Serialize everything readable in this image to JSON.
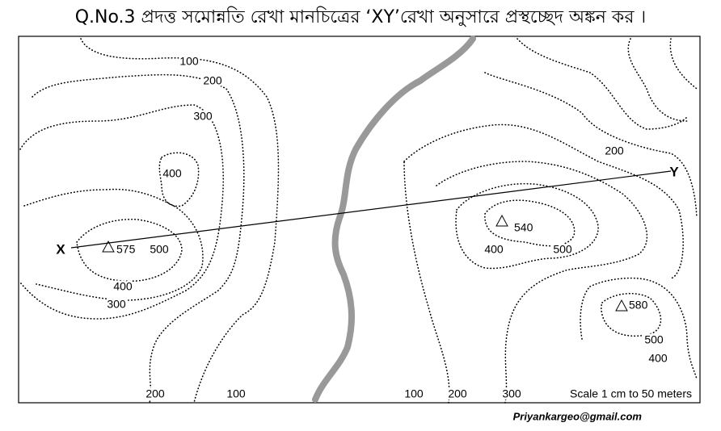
{
  "title": "Q.No.3 প্রদত্ত সমোন্নতি রেখা মানচিত্রের ‘XY’রেখা অনুসারে প্রস্থচ্ছেদ অঙ্কন কর ।",
  "contour_labels": [
    "100",
    "200",
    "300",
    "400",
    "500",
    "400",
    "300",
    "200",
    "100",
    "200",
    "500",
    "400",
    "100",
    "200",
    "300",
    "500",
    "400"
  ],
  "spot_heights": [
    "575",
    "540",
    "580"
  ],
  "points": [
    "X",
    "Y"
  ],
  "scale": "Scale 1 cm to 50 meters",
  "credit": "Priyankargeo@gmail.com"
}
